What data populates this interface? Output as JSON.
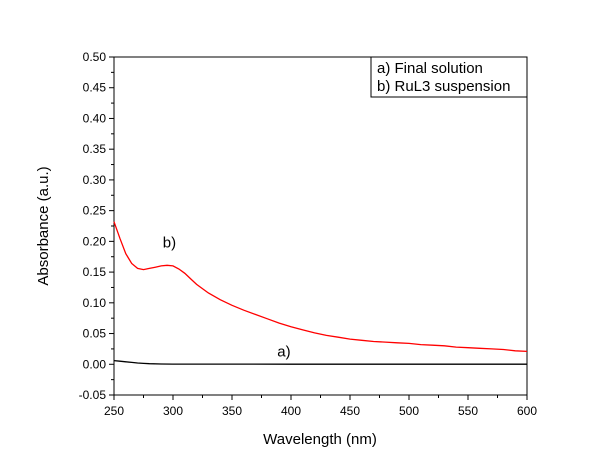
{
  "chart_data": {
    "type": "line",
    "title": "",
    "xlabel": "Wavelength (nm)",
    "ylabel": "Absorbance (a.u.)",
    "xlim": [
      250,
      600
    ],
    "ylim": [
      -0.05,
      0.5
    ],
    "xticks": [
      250,
      300,
      350,
      400,
      450,
      500,
      550,
      600
    ],
    "xtick_labels": [
      "250",
      "300",
      "350",
      "400",
      "450",
      "500",
      "550",
      "600"
    ],
    "yticks": [
      -0.05,
      0,
      0.05,
      0.1,
      0.15,
      0.2,
      0.25,
      0.3,
      0.35,
      0.4,
      0.45,
      0.5
    ],
    "ytick_labels": [
      "-0.05",
      "0.00",
      "0.05",
      "0.10",
      "0.15",
      "0.20",
      "0.25",
      "0.30",
      "0.35",
      "0.40",
      "0.45",
      "0.50"
    ],
    "grid": false,
    "legend": {
      "placement": "top-right",
      "entries": [
        "a) Final solution",
        "b) RuL3 suspension"
      ]
    },
    "annotations": [
      {
        "text": "b)",
        "x": 297,
        "y": 0.19
      },
      {
        "text": "a)",
        "x": 394,
        "y": 0.013
      }
    ],
    "series": [
      {
        "key": "a",
        "color": "#000000",
        "x": [
          250,
          255,
          260,
          265,
          270,
          275,
          280,
          290,
          300,
          350,
          400,
          450,
          500,
          550,
          600
        ],
        "y": [
          0.006,
          0.005,
          0.004,
          0.003,
          0.002,
          0.0015,
          0.001,
          0.0005,
          0.0003,
          0.0002,
          0.0001,
          0.0001,
          0.0001,
          0.0001,
          0.0001
        ]
      },
      {
        "key": "b",
        "color": "#ff0000",
        "x": [
          250,
          255,
          260,
          265,
          270,
          275,
          280,
          285,
          290,
          295,
          300,
          305,
          310,
          315,
          320,
          330,
          340,
          350,
          360,
          370,
          380,
          390,
          400,
          410,
          420,
          430,
          440,
          450,
          460,
          470,
          480,
          490,
          500,
          510,
          520,
          530,
          540,
          550,
          560,
          570,
          580,
          590,
          600
        ],
        "y": [
          0.232,
          0.205,
          0.18,
          0.164,
          0.156,
          0.154,
          0.156,
          0.158,
          0.16,
          0.161,
          0.16,
          0.155,
          0.148,
          0.139,
          0.13,
          0.116,
          0.105,
          0.096,
          0.088,
          0.081,
          0.074,
          0.067,
          0.061,
          0.056,
          0.051,
          0.047,
          0.044,
          0.041,
          0.039,
          0.037,
          0.036,
          0.035,
          0.034,
          0.032,
          0.031,
          0.03,
          0.028,
          0.027,
          0.026,
          0.025,
          0.024,
          0.022,
          0.021
        ]
      }
    ]
  }
}
